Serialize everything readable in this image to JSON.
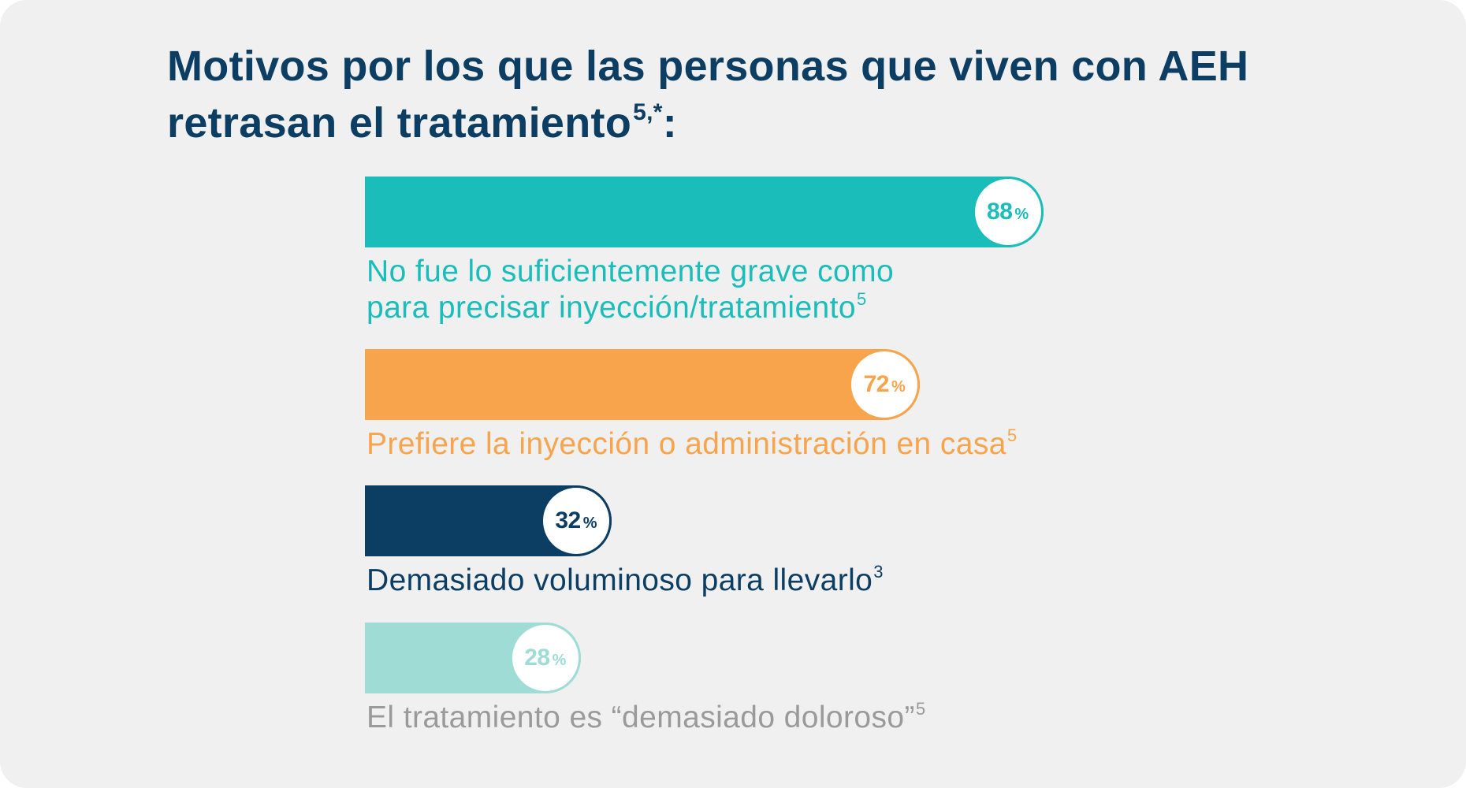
{
  "title": {
    "text": "Motivos por los que las personas que viven con AEH retrasan el tratamiento",
    "footnote": "5,*",
    "suffix": ":"
  },
  "chart_data": {
    "type": "bar",
    "orientation": "horizontal",
    "xlim": [
      0,
      100
    ],
    "unit": "%",
    "categories": [
      "No fue lo suficientemente grave como para precisar inyección/tratamiento",
      "Prefiere la inyección o administración en casa",
      "Demasiado voluminoso para llevarlo",
      "El tratamiento es “demasiado doloroso”"
    ],
    "category_refs": [
      "5",
      "5",
      "3",
      "5"
    ],
    "values": [
      88,
      72,
      32,
      28
    ],
    "colors": [
      "#1bbdba",
      "#f7a44c",
      "#0c3d62",
      "#9fdcd5"
    ],
    "label_colors": [
      "#1bbdba",
      "#f7a44c",
      "#0c3d62",
      "#9a9a9a"
    ]
  }
}
